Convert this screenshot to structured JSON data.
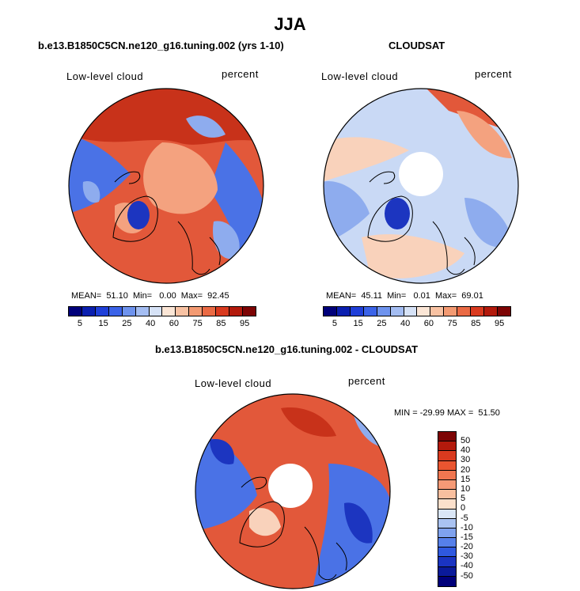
{
  "title": "JJA",
  "panels": [
    {
      "title": "b.e13.B1850C5CN.ne120_g16.tuning.002 (yrs 1-10)",
      "variable": "Low-level cloud",
      "units": "percent",
      "stats": "MEAN=  51.10  Min=   0.00  Max=  92.45"
    },
    {
      "title": "CLOUDSAT",
      "variable": "Low-level cloud",
      "units": "percent",
      "stats": "MEAN=  45.11  Min=   0.01  Max=  69.01"
    },
    {
      "title": "b.e13.B1850C5CN.ne120_g16.tuning.002 - CLOUDSAT",
      "variable": "Low-level cloud",
      "units": "percent",
      "stats": "MIN = -29.99 MAX =  51.50"
    }
  ],
  "abs_colorbar": {
    "labels": [
      "5",
      "15",
      "25",
      "40",
      "60",
      "75",
      "85",
      "95"
    ],
    "colors": [
      "#00007a",
      "#0a1fb0",
      "#1f3fd8",
      "#3b63e8",
      "#6e93ee",
      "#a4bdf2",
      "#d6e2f6",
      "#fbe6d6",
      "#f8c2a3",
      "#f39a72",
      "#ea6a44",
      "#d93a1f",
      "#b31a0c",
      "#7d0404"
    ]
  },
  "diff_colorbar": {
    "labels": [
      "50",
      "40",
      "30",
      "20",
      "15",
      "10",
      "5",
      "0",
      "-5",
      "-10",
      "-15",
      "-20",
      "-30",
      "-40",
      "-50"
    ],
    "colors": [
      "#7d0404",
      "#b31a0c",
      "#d93a1f",
      "#ea5530",
      "#f07650",
      "#f59a76",
      "#f8bf9f",
      "#fbe0cc",
      "#dae6f6",
      "#aac3f2",
      "#7fa2ee",
      "#5680ea",
      "#2f59e0",
      "#1a34c2",
      "#0a1a9a",
      "#00007a"
    ]
  },
  "map_colors": {
    "red_dark": "#c8321a",
    "red": "#e2583a",
    "salmon": "#f4a27f",
    "peach": "#f9d2bb",
    "pale_blue": "#c9d9f5",
    "light_blue": "#8eacee",
    "blue": "#4a72e6",
    "dark_blue": "#1c35c0"
  }
}
